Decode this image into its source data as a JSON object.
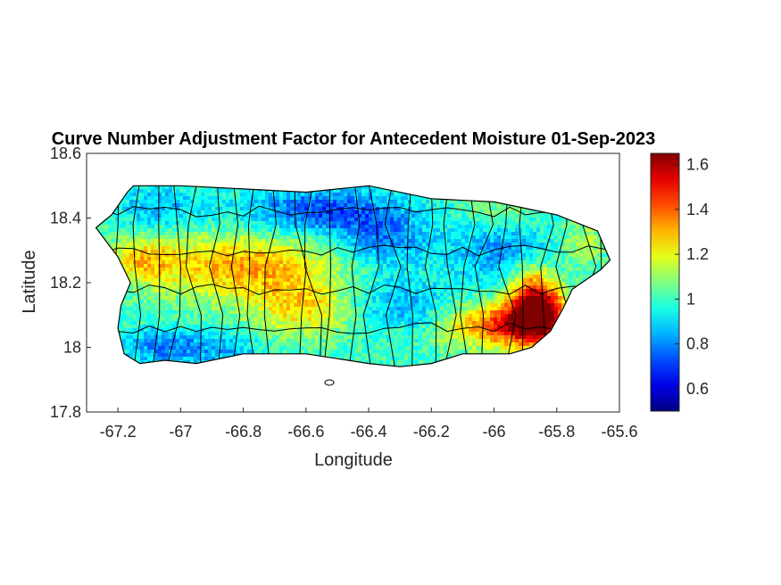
{
  "title": "Curve Number Adjustment Factor for Antecedent Moisture 01-Sep-2023",
  "x_axis": {
    "label": "Longitude",
    "range": [
      -67.3,
      -65.6
    ],
    "ticks": [
      -67.2,
      -67,
      -66.8,
      -66.6,
      -66.4,
      -66.2,
      -66,
      -65.8,
      -65.6
    ],
    "tick_labels": [
      "-67.2",
      "-67",
      "-66.8",
      "-66.6",
      "-66.4",
      "-66.2",
      "-66",
      "-65.8",
      "-65.6"
    ]
  },
  "y_axis": {
    "label": "Latitude",
    "range": [
      17.8,
      18.6
    ],
    "ticks": [
      17.8,
      18,
      18.2,
      18.4,
      18.6
    ],
    "tick_labels": [
      "17.8",
      "18",
      "18.2",
      "18.4",
      "18.6"
    ]
  },
  "colorbar": {
    "colormap": "jet",
    "range": [
      0.5,
      1.65
    ],
    "ticks": [
      0.6,
      0.8,
      1,
      1.2,
      1.4,
      1.6
    ],
    "tick_labels": [
      "0.6",
      "0.8",
      "1",
      "1.2",
      "1.4",
      "1.6"
    ]
  },
  "chart_data": {
    "type": "heatmap",
    "title": "Curve Number Adjustment Factor for Antecedent Moisture 01-Sep-2023",
    "xlabel": "Longitude",
    "ylabel": "Latitude",
    "xlim": [
      -67.3,
      -65.6
    ],
    "ylim": [
      17.8,
      18.6
    ],
    "colorbar_range": [
      0.5,
      1.65
    ],
    "region": "Puerto Rico",
    "island_outline_lonlat": [
      [
        -67.27,
        18.37
      ],
      [
        -67.22,
        18.41
      ],
      [
        -67.17,
        18.48
      ],
      [
        -67.15,
        18.5
      ],
      [
        -67.0,
        18.5
      ],
      [
        -66.8,
        18.49
      ],
      [
        -66.6,
        18.48
      ],
      [
        -66.4,
        18.5
      ],
      [
        -66.2,
        18.46
      ],
      [
        -66.0,
        18.45
      ],
      [
        -65.9,
        18.43
      ],
      [
        -65.8,
        18.41
      ],
      [
        -65.67,
        18.36
      ],
      [
        -65.63,
        18.27
      ],
      [
        -65.66,
        18.24
      ],
      [
        -65.75,
        18.18
      ],
      [
        -65.78,
        18.12
      ],
      [
        -65.82,
        18.05
      ],
      [
        -65.88,
        18.0
      ],
      [
        -65.95,
        17.98
      ],
      [
        -66.1,
        17.98
      ],
      [
        -66.2,
        17.95
      ],
      [
        -66.3,
        17.94
      ],
      [
        -66.4,
        17.95
      ],
      [
        -66.6,
        17.98
      ],
      [
        -66.8,
        17.98
      ],
      [
        -66.95,
        17.95
      ],
      [
        -67.05,
        17.96
      ],
      [
        -67.13,
        17.95
      ],
      [
        -67.18,
        17.98
      ],
      [
        -67.2,
        18.06
      ],
      [
        -67.19,
        18.13
      ],
      [
        -67.16,
        18.2
      ],
      [
        -67.2,
        18.28
      ],
      [
        -67.27,
        18.37
      ]
    ],
    "anomalies": [
      {
        "lon": -66.55,
        "lat": 18.42,
        "sigma_lon": 0.18,
        "sigma_lat": 0.05,
        "delta": -0.28
      },
      {
        "lon": -67.07,
        "lat": 18.43,
        "sigma_lon": 0.1,
        "sigma_lat": 0.05,
        "delta": -0.15
      },
      {
        "lon": -66.35,
        "lat": 18.33,
        "sigma_lon": 0.1,
        "sigma_lat": 0.06,
        "delta": -0.2
      },
      {
        "lon": -65.98,
        "lat": 18.3,
        "sigma_lon": 0.12,
        "sigma_lat": 0.07,
        "delta": -0.18
      },
      {
        "lon": -66.3,
        "lat": 18.13,
        "sigma_lon": 0.15,
        "sigma_lat": 0.06,
        "delta": -0.15
      },
      {
        "lon": -67.05,
        "lat": 18.0,
        "sigma_lon": 0.1,
        "sigma_lat": 0.04,
        "delta": -0.22
      },
      {
        "lon": -66.85,
        "lat": 17.99,
        "sigma_lon": 0.08,
        "sigma_lat": 0.04,
        "delta": -0.12
      },
      {
        "lon": -66.8,
        "lat": 18.25,
        "sigma_lon": 0.2,
        "sigma_lat": 0.07,
        "delta": 0.32
      },
      {
        "lon": -67.12,
        "lat": 18.27,
        "sigma_lon": 0.08,
        "sigma_lat": 0.05,
        "delta": 0.22
      },
      {
        "lon": -66.6,
        "lat": 18.12,
        "sigma_lon": 0.12,
        "sigma_lat": 0.06,
        "delta": 0.25
      },
      {
        "lon": -66.13,
        "lat": 18.07,
        "sigma_lon": 0.06,
        "sigma_lat": 0.05,
        "delta": 0.12
      },
      {
        "lon": -65.98,
        "lat": 18.42,
        "sigma_lon": 0.08,
        "sigma_lat": 0.04,
        "delta": 0.1
      },
      {
        "lon": -65.72,
        "lat": 18.32,
        "sigma_lon": 0.05,
        "sigma_lat": 0.05,
        "delta": 0.15
      },
      {
        "lon": -65.95,
        "lat": 18.07,
        "sigma_lon": 0.1,
        "sigma_lat": 0.05,
        "delta": 0.5
      },
      {
        "lon": -65.85,
        "lat": 18.1,
        "sigma_lon": 0.06,
        "sigma_lat": 0.06,
        "delta": 0.55
      },
      {
        "lon": -65.88,
        "lat": 18.18,
        "sigma_lon": 0.05,
        "sigma_lat": 0.06,
        "delta": 0.3
      }
    ],
    "base_value": 1.0
  }
}
